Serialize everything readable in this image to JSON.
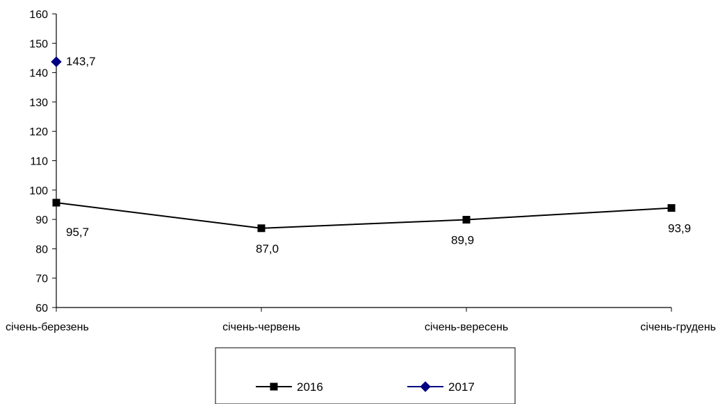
{
  "chart_data": {
    "type": "line",
    "categories": [
      "січень-березень",
      "січень-червень",
      "січень-вересень",
      "січень-грудень"
    ],
    "ylim": [
      60,
      160
    ],
    "yticks": [
      60,
      70,
      80,
      90,
      100,
      110,
      120,
      130,
      140,
      150,
      160
    ],
    "grid": false,
    "legend_position": "bottom",
    "series": [
      {
        "name": "2016",
        "color": "#000000",
        "marker": "square",
        "values": [
          95.7,
          87.0,
          89.9,
          93.9
        ],
        "labels": [
          "95,7",
          "87,0",
          "89,9",
          "93,9"
        ]
      },
      {
        "name": "2017",
        "color": "#000080",
        "marker": "diamond",
        "values": [
          143.7,
          null,
          null,
          null
        ],
        "labels": [
          "143,7",
          null,
          null,
          null
        ]
      }
    ]
  }
}
